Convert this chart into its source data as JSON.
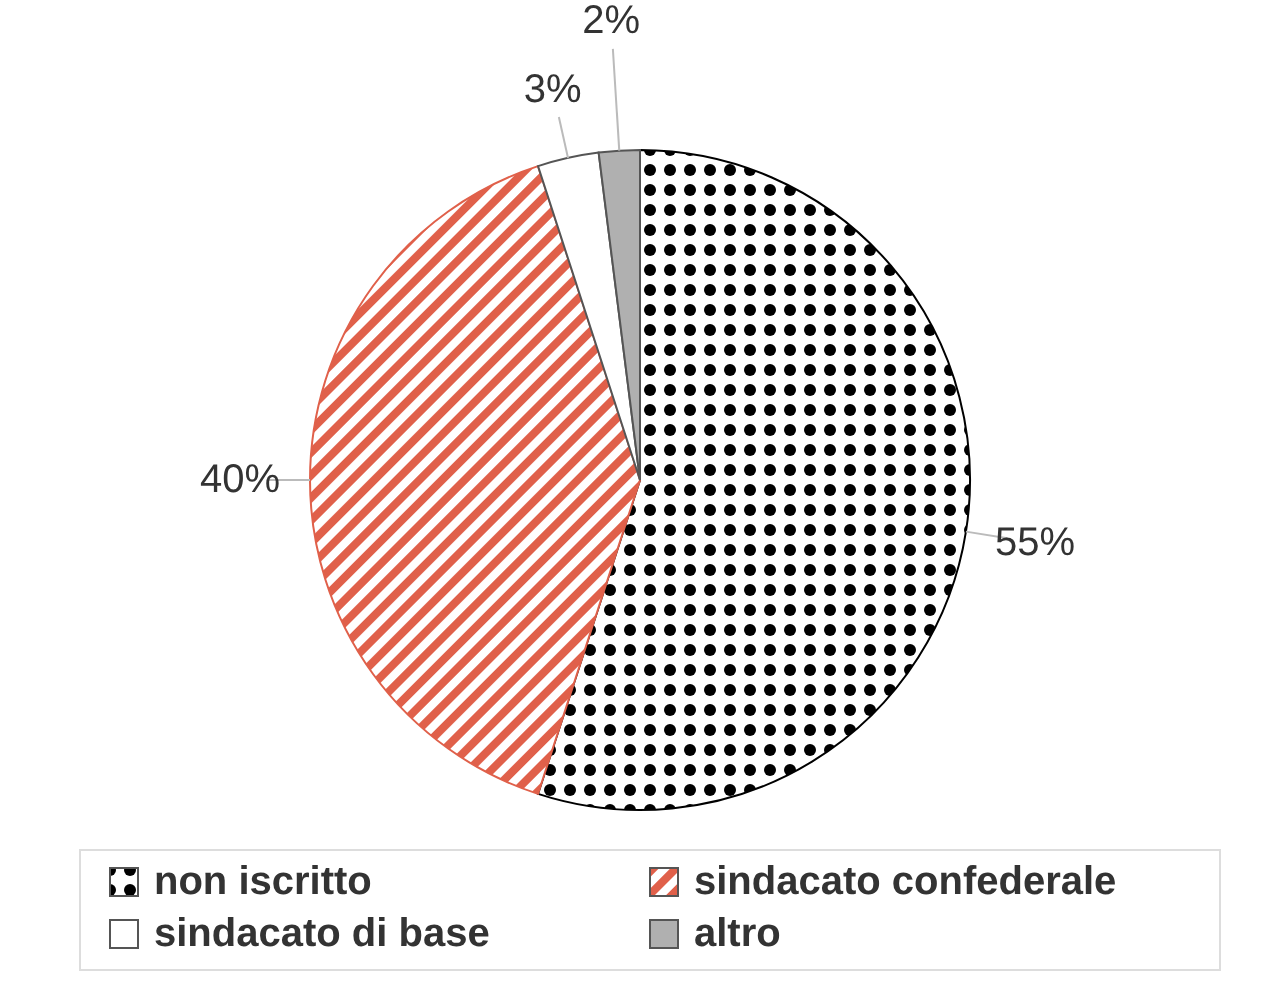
{
  "chart_data": {
    "type": "pie",
    "categories": [
      "non iscritto",
      "sindacato confederale",
      "sindacato di base",
      "altro"
    ],
    "values": [
      55,
      40,
      3,
      2
    ],
    "colors": [
      "#000000",
      "#e0604a",
      "#ffffff",
      "#b0b0b0"
    ],
    "value_labels": [
      "55%",
      "40%",
      "3%",
      "2%"
    ],
    "legend": "bottom"
  }
}
